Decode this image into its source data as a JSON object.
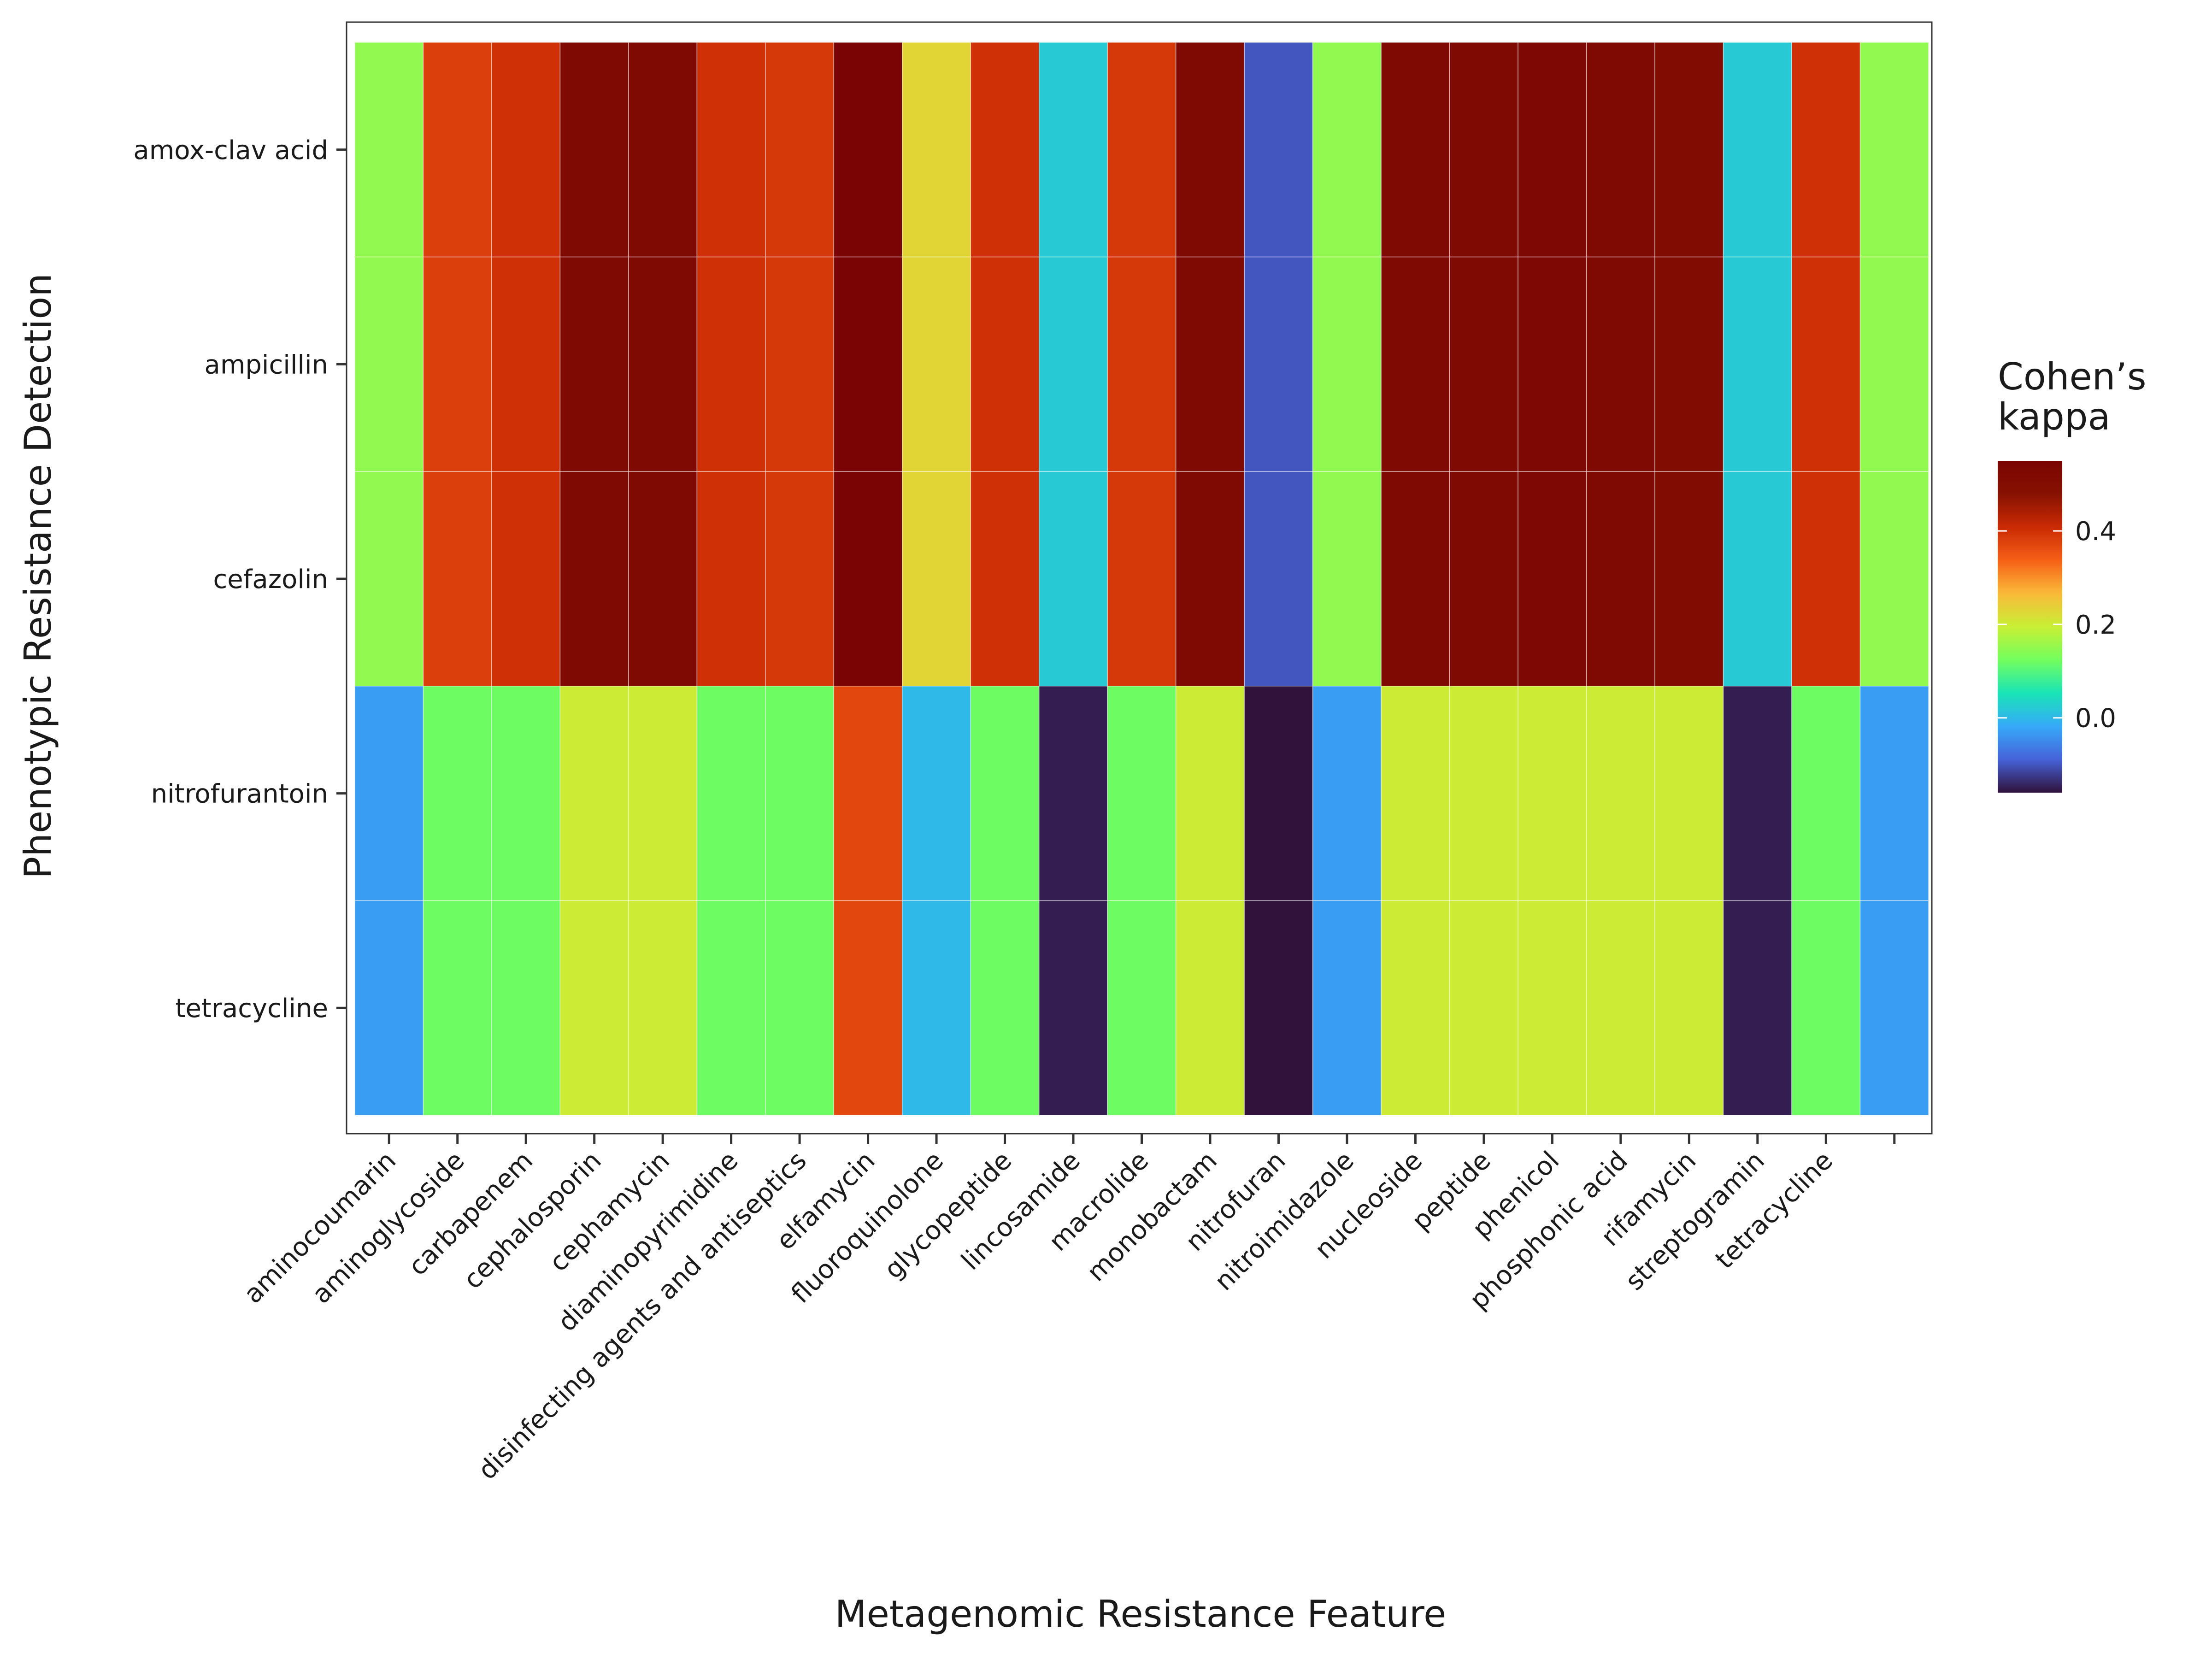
{
  "chart_data": {
    "type": "heatmap",
    "xlabel": "Metagenomic Resistance Feature",
    "ylabel": "Phenotypic Resistance Detection",
    "x_categories": [
      "aminocoumarin",
      "aminoglycoside",
      "carbapenem",
      "cephalosporin",
      "cephamycin",
      "diaminopyrimidine",
      "disinfecting agents and antiseptics",
      "elfamycin",
      "fluoroquinolone",
      "glycopeptide",
      "lincosamide",
      "macrolide",
      "monobactam",
      "nitrofuran",
      "nitroimidazole",
      "nucleoside",
      "peptide",
      "phenicol",
      "phosphonic acid",
      "rifamycin",
      "streptogramin",
      "tetracycline",
      ""
    ],
    "y_categories": [
      "amox-clav acid",
      "ampicillin",
      "cefazolin",
      "nitrofurantoin",
      "tetracycline"
    ],
    "values": [
      [
        0.15,
        0.38,
        0.4,
        0.52,
        0.52,
        0.4,
        0.39,
        0.55,
        0.23,
        0.4,
        0.02,
        0.39,
        0.52,
        -0.1,
        0.15,
        0.52,
        0.52,
        0.53,
        0.52,
        0.51,
        0.02,
        0.4,
        0.15
      ],
      [
        0.15,
        0.38,
        0.4,
        0.52,
        0.52,
        0.4,
        0.39,
        0.55,
        0.23,
        0.4,
        0.02,
        0.39,
        0.52,
        -0.1,
        0.15,
        0.52,
        0.52,
        0.53,
        0.52,
        0.51,
        0.02,
        0.4,
        0.15
      ],
      [
        0.15,
        0.38,
        0.4,
        0.52,
        0.52,
        0.4,
        0.39,
        0.55,
        0.23,
        0.4,
        0.02,
        0.39,
        0.52,
        -0.1,
        0.15,
        0.52,
        0.52,
        0.53,
        0.52,
        0.51,
        0.02,
        0.4,
        0.15
      ],
      [
        -0.03,
        0.12,
        0.12,
        0.2,
        0.2,
        0.12,
        0.12,
        0.37,
        0.0,
        0.12,
        -0.15,
        0.12,
        0.2,
        -0.16,
        -0.03,
        0.2,
        0.2,
        0.2,
        0.2,
        0.2,
        -0.15,
        0.12,
        -0.03
      ],
      [
        -0.03,
        0.12,
        0.12,
        0.2,
        0.2,
        0.12,
        0.12,
        0.37,
        0.0,
        0.12,
        -0.15,
        0.12,
        0.2,
        -0.16,
        -0.03,
        0.2,
        0.2,
        0.2,
        0.2,
        0.2,
        -0.15,
        0.12,
        -0.03
      ]
    ],
    "colorbar": {
      "title_line1": "Cohen’s",
      "title_line2": "kappa",
      "min": -0.16,
      "max": 0.55,
      "ticks": [
        0.4,
        0.2,
        0.0
      ],
      "tick_labels": [
        "0.4",
        "0.2",
        "0.0"
      ]
    },
    "colormap": "turbo",
    "grid": true,
    "legend_position": "right"
  }
}
